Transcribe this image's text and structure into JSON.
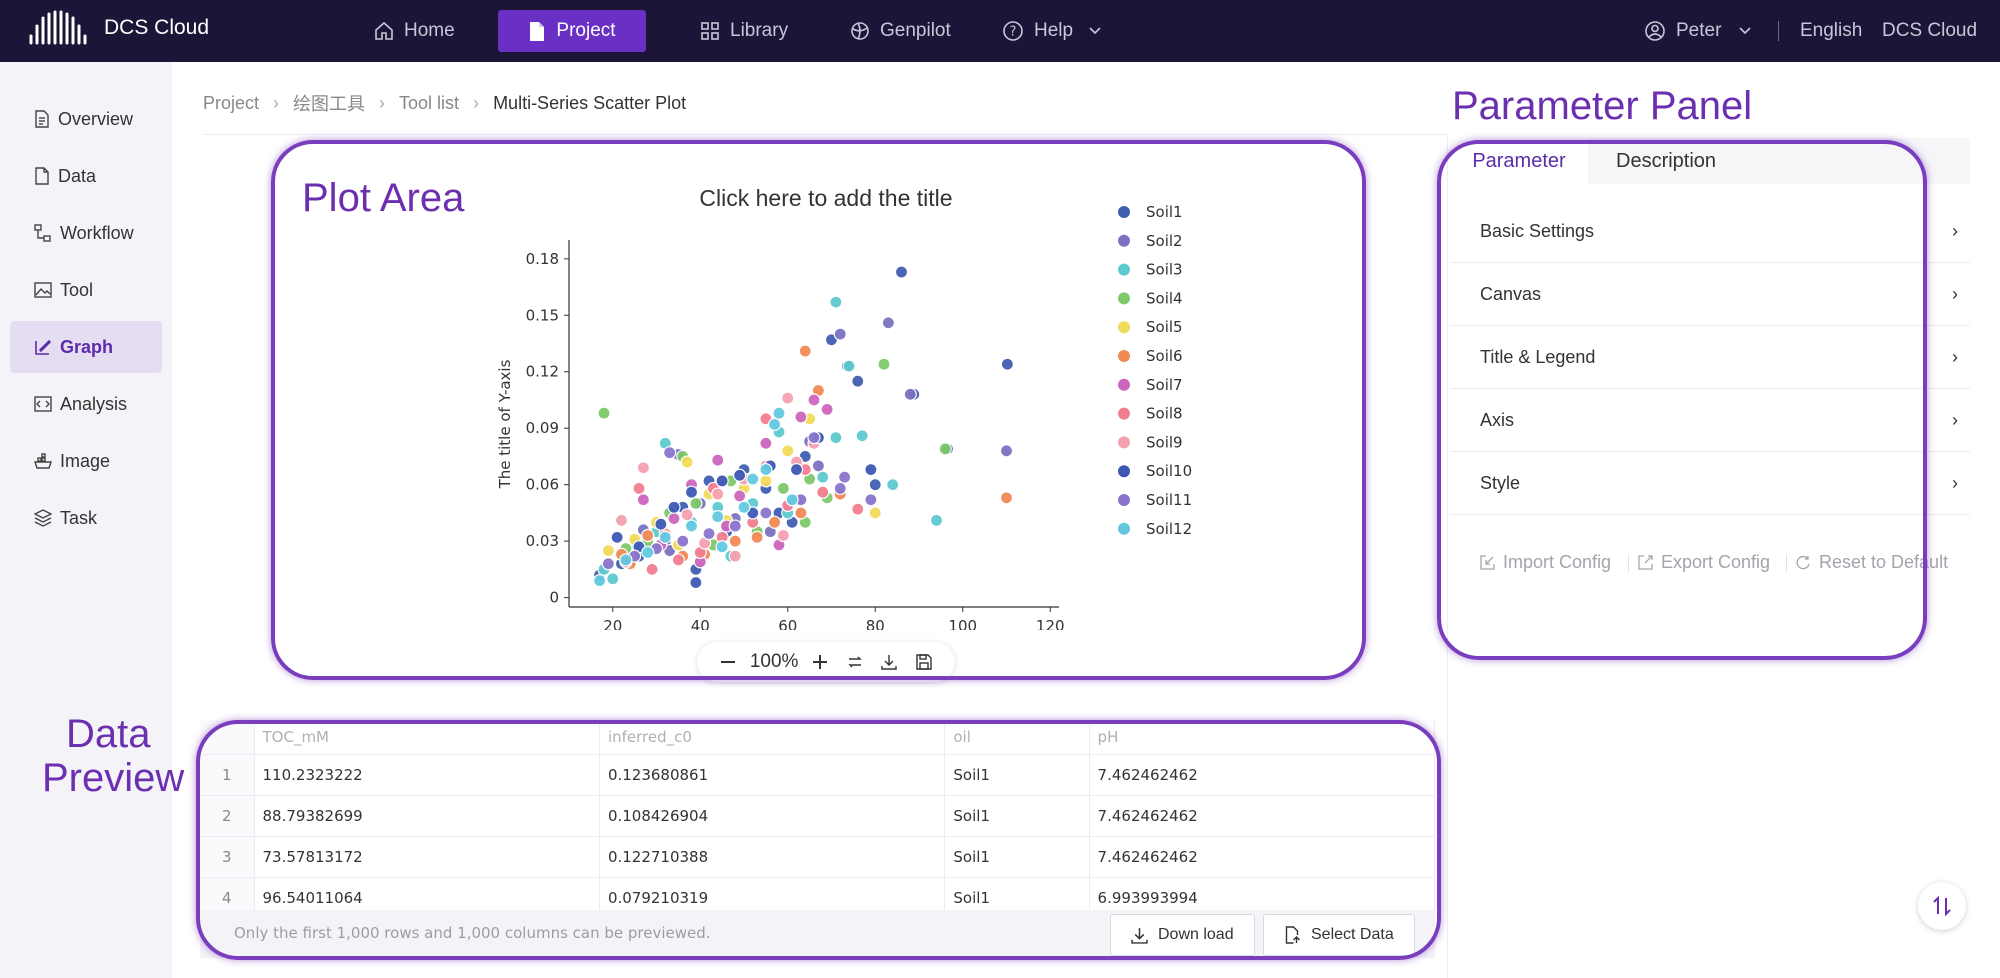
{
  "brand": {
    "name": "DCS Cloud",
    "icon": "waveform-logo-icon"
  },
  "nav": [
    {
      "label": "Home",
      "icon": "home-icon"
    },
    {
      "label": "Project",
      "icon": "file-icon"
    },
    {
      "label": "Library",
      "icon": "grid-icon"
    },
    {
      "label": "Genpilot",
      "icon": "globe-icon"
    },
    {
      "label": "Help",
      "icon": "help-icon"
    }
  ],
  "user": {
    "name": "Peter",
    "language": "English",
    "workspace": "DCS Cloud"
  },
  "sidebar": [
    {
      "label": "Overview",
      "icon": "document-icon"
    },
    {
      "label": "Data",
      "icon": "data-file-icon"
    },
    {
      "label": "Workflow",
      "icon": "workflow-icon"
    },
    {
      "label": "Tool",
      "icon": "image-icon"
    },
    {
      "label": "Graph",
      "icon": "graph-edit-icon",
      "active": true
    },
    {
      "label": "Analysis",
      "icon": "code-icon"
    },
    {
      "label": "Image",
      "icon": "container-icon"
    },
    {
      "label": "Task",
      "icon": "layers-icon"
    }
  ],
  "breadcrumb": [
    "Project",
    "绘图工具",
    "Tool list",
    "Multi-Series Scatter Plot"
  ],
  "annotations": {
    "plot_area": "Plot Area",
    "parameter_panel": "Parameter Panel",
    "data_preview_1": "Data",
    "data_preview_2": "Preview"
  },
  "chart_data": {
    "type": "scatter",
    "title": "Click here to add the title",
    "xlabel": "",
    "ylabel": "The title of Y-axis",
    "xlim": [
      10,
      122
    ],
    "ylim": [
      -0.005,
      0.19
    ],
    "xticks": [
      "20",
      "40",
      "60",
      "80",
      "100",
      "120"
    ],
    "yticks": [
      "0",
      "0.03",
      "0.06",
      "0.09",
      "0.12",
      "0.15",
      "0.18"
    ],
    "xtick_values": [
      20,
      40,
      60,
      80,
      100,
      120
    ],
    "ytick_values": [
      0,
      0.03,
      0.06,
      0.09,
      0.12,
      0.15,
      0.18
    ],
    "legend_position": "right",
    "series": [
      {
        "name": "Soil1",
        "color": "#3f5fb0",
        "points": [
          [
            110.2,
            0.124
          ],
          [
            88.8,
            0.108
          ],
          [
            73.6,
            0.123
          ],
          [
            96.5,
            0.079
          ],
          [
            86,
            0.173
          ],
          [
            76,
            0.115
          ],
          [
            64,
            0.075
          ],
          [
            50,
            0.068
          ],
          [
            42,
            0.062
          ],
          [
            36,
            0.048
          ],
          [
            32,
            0.03
          ],
          [
            26,
            0.022
          ],
          [
            22,
            0.018
          ],
          [
            58,
            0.045
          ],
          [
            46,
            0.035
          ],
          [
            55,
            0.058
          ],
          [
            70,
            0.137
          ],
          [
            17,
            0.012
          ],
          [
            39,
            0.015
          ],
          [
            80,
            0.06
          ],
          [
            61,
            0.04
          ]
        ]
      },
      {
        "name": "Soil2",
        "color": "#7b72c2",
        "points": [
          [
            83,
            0.146
          ],
          [
            88,
            0.108
          ],
          [
            72,
            0.14
          ],
          [
            110,
            0.078
          ],
          [
            65,
            0.083
          ],
          [
            48,
            0.042
          ],
          [
            40,
            0.05
          ],
          [
            33,
            0.025
          ],
          [
            27,
            0.036
          ],
          [
            24,
            0.02
          ],
          [
            56,
            0.035
          ],
          [
            67,
            0.07
          ],
          [
            35,
            0.076
          ],
          [
            62,
            0.052
          ]
        ]
      },
      {
        "name": "Soil3",
        "color": "#5fc9d0",
        "points": [
          [
            71,
            0.157
          ],
          [
            74,
            0.123
          ],
          [
            71,
            0.085
          ],
          [
            77,
            0.086
          ],
          [
            94,
            0.041
          ],
          [
            68,
            0.064
          ],
          [
            60,
            0.045
          ],
          [
            58,
            0.088
          ],
          [
            52,
            0.05
          ],
          [
            44,
            0.048
          ],
          [
            38,
            0.04
          ],
          [
            32,
            0.082
          ],
          [
            25,
            0.028
          ],
          [
            18,
            0.015
          ],
          [
            20,
            0.01
          ],
          [
            30,
            0.035
          ],
          [
            84,
            0.06
          ],
          [
            47,
            0.022
          ]
        ]
      },
      {
        "name": "Soil4",
        "color": "#7dc86a",
        "points": [
          [
            18,
            0.098
          ],
          [
            82,
            0.124
          ],
          [
            96,
            0.079
          ],
          [
            59,
            0.058
          ],
          [
            69,
            0.053
          ],
          [
            65,
            0.063
          ],
          [
            47,
            0.062
          ],
          [
            36,
            0.075
          ],
          [
            33,
            0.045
          ],
          [
            28,
            0.03
          ],
          [
            23,
            0.026
          ],
          [
            53,
            0.035
          ],
          [
            43,
            0.028
          ],
          [
            64,
            0.04
          ],
          [
            39,
            0.05
          ]
        ]
      },
      {
        "name": "Soil5",
        "color": "#f2da5a",
        "points": [
          [
            60,
            0.078
          ],
          [
            80,
            0.045
          ],
          [
            65,
            0.095
          ],
          [
            42,
            0.055
          ],
          [
            37,
            0.072
          ],
          [
            30,
            0.04
          ],
          [
            25,
            0.031
          ],
          [
            19,
            0.025
          ],
          [
            50,
            0.058
          ],
          [
            55,
            0.062
          ],
          [
            46,
            0.041
          ],
          [
            35,
            0.028
          ]
        ]
      },
      {
        "name": "Soil6",
        "color": "#f08a55",
        "points": [
          [
            64,
            0.131
          ],
          [
            67,
            0.11
          ],
          [
            110,
            0.053
          ],
          [
            72,
            0.055
          ],
          [
            63,
            0.045
          ],
          [
            53,
            0.032
          ],
          [
            48,
            0.03
          ],
          [
            41,
            0.023
          ],
          [
            36,
            0.022
          ],
          [
            28,
            0.033
          ],
          [
            24,
            0.018
          ],
          [
            22,
            0.023
          ],
          [
            57,
            0.04
          ]
        ]
      },
      {
        "name": "Soil7",
        "color": "#cc66bd",
        "points": [
          [
            66,
            0.105
          ],
          [
            69,
            0.1
          ],
          [
            63,
            0.096
          ],
          [
            55,
            0.082
          ],
          [
            44,
            0.073
          ],
          [
            38,
            0.06
          ],
          [
            34,
            0.042
          ],
          [
            27,
            0.052
          ],
          [
            31,
            0.028
          ],
          [
            46,
            0.038
          ],
          [
            58,
            0.028
          ],
          [
            40,
            0.019
          ],
          [
            49,
            0.054
          ]
        ]
      },
      {
        "name": "Soil8",
        "color": "#f27d8f",
        "points": [
          [
            76,
            0.047
          ],
          [
            68,
            0.056
          ],
          [
            60,
            0.049
          ],
          [
            52,
            0.04
          ],
          [
            45,
            0.032
          ],
          [
            40,
            0.024
          ],
          [
            35,
            0.02
          ],
          [
            29,
            0.015
          ],
          [
            23,
            0.019
          ],
          [
            26,
            0.058
          ],
          [
            55,
            0.095
          ],
          [
            64,
            0.068
          ],
          [
            43,
            0.058
          ]
        ]
      },
      {
        "name": "Soil9",
        "color": "#f5a0b0",
        "points": [
          [
            60,
            0.106
          ],
          [
            66,
            0.082
          ],
          [
            62,
            0.072
          ],
          [
            55,
            0.07
          ],
          [
            50,
            0.063
          ],
          [
            44,
            0.055
          ],
          [
            37,
            0.044
          ],
          [
            32,
            0.034
          ],
          [
            27,
            0.069
          ],
          [
            22,
            0.041
          ],
          [
            59,
            0.033
          ],
          [
            48,
            0.022
          ],
          [
            41,
            0.029
          ]
        ]
      },
      {
        "name": "Soil10",
        "color": "#3b58b5",
        "points": [
          [
            62,
            0.068
          ],
          [
            56,
            0.07
          ],
          [
            49,
            0.065
          ],
          [
            45,
            0.062
          ],
          [
            38,
            0.056
          ],
          [
            34,
            0.048
          ],
          [
            31,
            0.039
          ],
          [
            26,
            0.027
          ],
          [
            21,
            0.032
          ],
          [
            39,
            0.008
          ],
          [
            52,
            0.045
          ],
          [
            67,
            0.085
          ],
          [
            79,
            0.068
          ]
        ]
      },
      {
        "name": "Soil11",
        "color": "#8a75cc",
        "points": [
          [
            73,
            0.064
          ],
          [
            79,
            0.052
          ],
          [
            72,
            0.058
          ],
          [
            63,
            0.052
          ],
          [
            55,
            0.045
          ],
          [
            48,
            0.038
          ],
          [
            42,
            0.034
          ],
          [
            36,
            0.03
          ],
          [
            30,
            0.026
          ],
          [
            25,
            0.022
          ],
          [
            19,
            0.018
          ],
          [
            33,
            0.077
          ],
          [
            66,
            0.085
          ]
        ]
      },
      {
        "name": "Soil12",
        "color": "#63c8df",
        "points": [
          [
            57,
            0.092
          ],
          [
            58,
            0.098
          ],
          [
            61,
            0.052
          ],
          [
            55,
            0.068
          ],
          [
            50,
            0.048
          ],
          [
            44,
            0.043
          ],
          [
            38,
            0.038
          ],
          [
            32,
            0.032
          ],
          [
            28,
            0.024
          ],
          [
            23,
            0.02
          ],
          [
            17,
            0.009
          ],
          [
            45,
            0.027
          ],
          [
            52,
            0.063
          ]
        ]
      }
    ]
  },
  "zoom": {
    "value": "100%"
  },
  "panel": {
    "tabs": [
      "Parameter",
      "Description"
    ],
    "sections": [
      "Basic Settings",
      "Canvas",
      "Title & Legend",
      "Axis",
      "Style"
    ],
    "actions": [
      "Import Config",
      "Export Config",
      "Reset to Default"
    ]
  },
  "table": {
    "columns": [
      "TOC_mM",
      "inferred_c0",
      "oil",
      "pH"
    ],
    "rows": [
      [
        "1",
        "110.2323222",
        "0.123680861",
        "Soil1",
        "7.462462462"
      ],
      [
        "2",
        "88.79382699",
        "0.108426904",
        "Soil1",
        "7.462462462"
      ],
      [
        "3",
        "73.57813172",
        "0.122710388",
        "Soil1",
        "7.462462462"
      ],
      [
        "4",
        "96.54011064",
        "0.079210319",
        "Soil1",
        "6.993993994"
      ]
    ],
    "note": "Only the first 1,000 rows and 1,000 columns can be previewed.",
    "download_label": "Down load",
    "select_label": "Select Data"
  }
}
